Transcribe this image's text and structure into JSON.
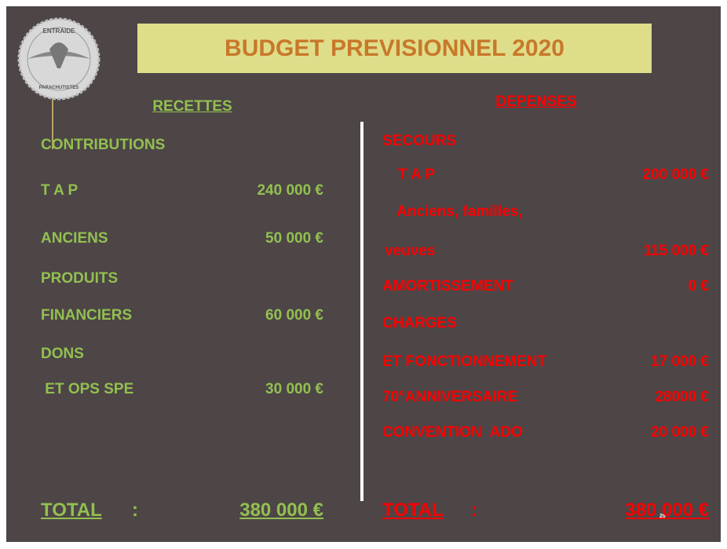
{
  "title": "BUDGET PREVISIONNEL 2020",
  "logo": {
    "top": "ENTRAIDE",
    "bottom": "PARACHUTISTES"
  },
  "recettes": {
    "header": "RECETTES",
    "rows": [
      {
        "label": "CONTRIBUTIONS"
      },
      {
        "label": "T A P",
        "amount": "240 000 €"
      },
      {
        "label": "ANCIENS",
        "amount": "50 000 €"
      },
      {
        "label": "PRODUITS"
      },
      {
        "label": "FINANCIERS",
        "amount": "60 000 €"
      },
      {
        "label": "DONS"
      },
      {
        "label": " ET OPS SPE",
        "amount": "30 000 €"
      }
    ],
    "total": {
      "label": "TOTAL",
      "sep": ":",
      "amount": "380 000 €"
    }
  },
  "depenses": {
    "header": "DEPENSES",
    "rows": [
      {
        "label": "SECOURS"
      },
      {
        "label": "T A P",
        "amount": "200 000 €"
      },
      {
        "label": "Anciens, familles,"
      },
      {
        "label": "veuves",
        "amount": "115 000 €"
      },
      {
        "label": "AMORTISSEMENT",
        "amount": "0 €"
      },
      {
        "label": "CHARGES"
      },
      {
        "label": "ET FONCTIONNEMENT",
        "amount": "17 000 €"
      },
      {
        "label": "70°ANNIVERSAIRE",
        "amount": "28000 €"
      },
      {
        "label": "CONVENTION  ADO",
        "amount": "20 000 €"
      }
    ],
    "total": {
      "label": "TOTAL",
      "sep": ":",
      "amount": "380 000 €"
    }
  },
  "page_number": "29"
}
